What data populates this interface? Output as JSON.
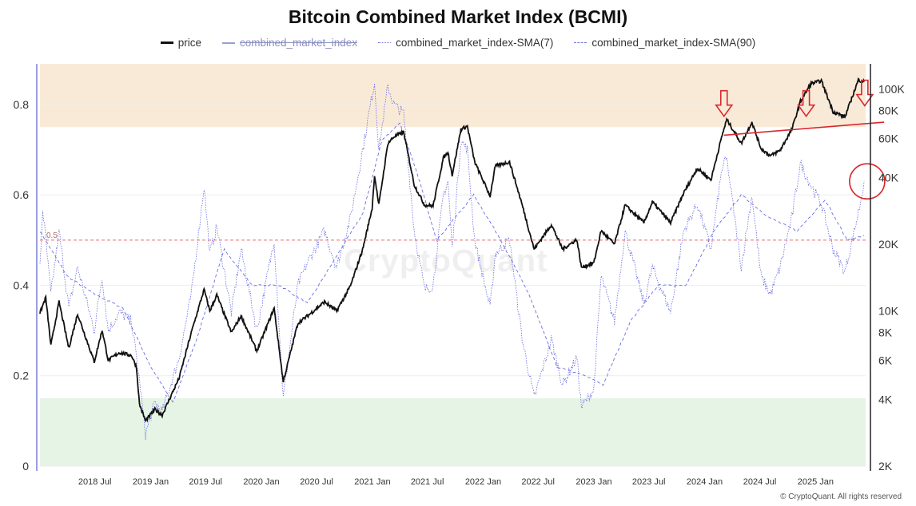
{
  "chart_data": {
    "type": "line",
    "title": "Bitcoin Combined Market Index (BCMI)",
    "legend": {
      "placement": "top-center",
      "entries": [
        {
          "key": "price",
          "label": "price",
          "style": "solid-thick",
          "color": "#111111",
          "active": true
        },
        {
          "key": "cmi",
          "label": "combined_market_index",
          "style": "solid",
          "color": "#8a8fc9",
          "active": false
        },
        {
          "key": "sma7",
          "label": "combined_market_index-SMA(7)",
          "style": "dotted",
          "color": "#6a6de0",
          "active": true
        },
        {
          "key": "sma90",
          "label": "combined_market_index-SMA(90)",
          "style": "dashed",
          "color": "#6a6de0",
          "active": true
        }
      ]
    },
    "x_axis": {
      "range": [
        "2018-01-01",
        "2025-06-15"
      ],
      "ticks": [
        {
          "date": "2018-07-01",
          "label": "2018 Jul"
        },
        {
          "date": "2019-01-01",
          "label": "2019 Jan"
        },
        {
          "date": "2019-07-01",
          "label": "2019 Jul"
        },
        {
          "date": "2020-01-01",
          "label": "2020 Jan"
        },
        {
          "date": "2020-07-01",
          "label": "2020 Jul"
        },
        {
          "date": "2021-01-01",
          "label": "2021 Jan"
        },
        {
          "date": "2021-07-01",
          "label": "2021 Jul"
        },
        {
          "date": "2022-01-01",
          "label": "2022 Jan"
        },
        {
          "date": "2022-07-01",
          "label": "2022 Jul"
        },
        {
          "date": "2023-01-01",
          "label": "2023 Jan"
        },
        {
          "date": "2023-07-01",
          "label": "2023 Jul"
        },
        {
          "date": "2024-01-01",
          "label": "2024 Jan"
        },
        {
          "date": "2024-07-01",
          "label": "2024 Jul"
        },
        {
          "date": "2025-01-01",
          "label": "2025 Jan"
        }
      ]
    },
    "y_left": {
      "range": [
        0,
        0.89
      ],
      "ticks": [
        {
          "v": 0,
          "label": "0"
        },
        {
          "v": 0.2,
          "label": "0.2"
        },
        {
          "v": 0.4,
          "label": "0.4"
        },
        {
          "v": 0.6,
          "label": "0.6"
        },
        {
          "v": 0.8,
          "label": "0.8"
        }
      ]
    },
    "y_right": {
      "scale": "log",
      "range": [
        2000,
        130000
      ],
      "ticks": [
        {
          "v": 2000,
          "label": "2K"
        },
        {
          "v": 4000,
          "label": "4K"
        },
        {
          "v": 6000,
          "label": "6K"
        },
        {
          "v": 8000,
          "label": "8K"
        },
        {
          "v": 10000,
          "label": "10K"
        },
        {
          "v": 20000,
          "label": "20K"
        },
        {
          "v": 40000,
          "label": "40K"
        },
        {
          "v": 60000,
          "label": "60K"
        },
        {
          "v": 80000,
          "label": "80K"
        },
        {
          "v": 100000,
          "label": "100K"
        }
      ]
    },
    "bands": [
      {
        "from": 0.75,
        "to": 0.89,
        "color": "#f9ead7"
      },
      {
        "from": 0,
        "to": 0.15,
        "color": "#e6f4e6"
      }
    ],
    "reference_line": {
      "value": 0.5,
      "label": "0.5",
      "color": "#e86b6b"
    },
    "series": [
      {
        "name": "price",
        "axis": "right",
        "points": [
          [
            "2018-01-01",
            9800
          ],
          [
            "2018-01-20",
            11500
          ],
          [
            "2018-02-06",
            7000
          ],
          [
            "2018-03-05",
            11000
          ],
          [
            "2018-04-06",
            6800
          ],
          [
            "2018-05-05",
            9700
          ],
          [
            "2018-06-29",
            5900
          ],
          [
            "2018-07-25",
            8200
          ],
          [
            "2018-08-14",
            6000
          ],
          [
            "2018-09-20",
            6500
          ],
          [
            "2018-10-30",
            6300
          ],
          [
            "2018-11-15",
            5600
          ],
          [
            "2018-11-25",
            3800
          ],
          [
            "2018-12-15",
            3200
          ],
          [
            "2019-01-15",
            3600
          ],
          [
            "2019-02-08",
            3400
          ],
          [
            "2019-04-05",
            5000
          ],
          [
            "2019-05-15",
            8000
          ],
          [
            "2019-06-26",
            12500
          ],
          [
            "2019-07-15",
            10000
          ],
          [
            "2019-08-07",
            11800
          ],
          [
            "2019-09-24",
            8000
          ],
          [
            "2019-10-26",
            9500
          ],
          [
            "2019-12-17",
            6600
          ],
          [
            "2020-02-12",
            10300
          ],
          [
            "2020-03-13",
            4800
          ],
          [
            "2020-04-30",
            8800
          ],
          [
            "2020-06-01",
            9500
          ],
          [
            "2020-07-27",
            11000
          ],
          [
            "2020-09-05",
            10000
          ],
          [
            "2020-10-21",
            13000
          ],
          [
            "2020-11-30",
            19000
          ],
          [
            "2020-12-31",
            29000
          ],
          [
            "2021-01-08",
            41000
          ],
          [
            "2021-01-22",
            30000
          ],
          [
            "2021-02-21",
            57000
          ],
          [
            "2021-03-13",
            61000
          ],
          [
            "2021-04-14",
            64000
          ],
          [
            "2021-05-19",
            37000
          ],
          [
            "2021-06-22",
            30000
          ],
          [
            "2021-07-20",
            29800
          ],
          [
            "2021-08-23",
            49000
          ],
          [
            "2021-09-07",
            52000
          ],
          [
            "2021-09-21",
            41000
          ],
          [
            "2021-10-20",
            66000
          ],
          [
            "2021-11-10",
            68000
          ],
          [
            "2021-12-04",
            47000
          ],
          [
            "2022-01-24",
            33000
          ],
          [
            "2022-02-10",
            45000
          ],
          [
            "2022-03-29",
            47000
          ],
          [
            "2022-05-10",
            30000
          ],
          [
            "2022-06-18",
            19000
          ],
          [
            "2022-08-14",
            24500
          ],
          [
            "2022-09-20",
            19000
          ],
          [
            "2022-11-06",
            21000
          ],
          [
            "2022-11-21",
            15700
          ],
          [
            "2023-01-01",
            16500
          ],
          [
            "2023-01-25",
            23000
          ],
          [
            "2023-03-10",
            20000
          ],
          [
            "2023-04-14",
            30000
          ],
          [
            "2023-06-15",
            25000
          ],
          [
            "2023-07-13",
            31000
          ],
          [
            "2023-09-11",
            25000
          ],
          [
            "2023-10-24",
            34000
          ],
          [
            "2023-12-08",
            44000
          ],
          [
            "2024-01-22",
            39000
          ],
          [
            "2024-02-28",
            62000
          ],
          [
            "2024-03-14",
            73000
          ],
          [
            "2024-05-01",
            57000
          ],
          [
            "2024-06-05",
            71000
          ],
          [
            "2024-07-05",
            54000
          ],
          [
            "2024-08-05",
            50000
          ],
          [
            "2024-09-06",
            53000
          ],
          [
            "2024-10-15",
            66000
          ],
          [
            "2024-11-12",
            88000
          ],
          [
            "2024-12-17",
            106000
          ],
          [
            "2025-01-20",
            109000
          ],
          [
            "2025-02-28",
            79000
          ],
          [
            "2025-04-08",
            75000
          ],
          [
            "2025-05-22",
            110000
          ],
          [
            "2025-06-10",
            108000
          ]
        ]
      },
      {
        "name": "combined_market_index-SMA(7)",
        "axis": "left",
        "points": [
          [
            "2018-01-01",
            0.44
          ],
          [
            "2018-01-10",
            0.57
          ],
          [
            "2018-02-06",
            0.38
          ],
          [
            "2018-03-05",
            0.52
          ],
          [
            "2018-04-06",
            0.35
          ],
          [
            "2018-05-05",
            0.44
          ],
          [
            "2018-06-29",
            0.3
          ],
          [
            "2018-07-25",
            0.42
          ],
          [
            "2018-08-14",
            0.3
          ],
          [
            "2018-09-20",
            0.34
          ],
          [
            "2018-10-30",
            0.32
          ],
          [
            "2018-11-25",
            0.19
          ],
          [
            "2018-12-15",
            0.07
          ],
          [
            "2019-01-15",
            0.14
          ],
          [
            "2019-02-08",
            0.12
          ],
          [
            "2019-04-05",
            0.24
          ],
          [
            "2019-05-15",
            0.38
          ],
          [
            "2019-06-26",
            0.62
          ],
          [
            "2019-07-15",
            0.47
          ],
          [
            "2019-08-07",
            0.53
          ],
          [
            "2019-09-24",
            0.34
          ],
          [
            "2019-10-26",
            0.48
          ],
          [
            "2019-12-17",
            0.3
          ],
          [
            "2020-02-12",
            0.5
          ],
          [
            "2020-03-13",
            0.15
          ],
          [
            "2020-04-30",
            0.4
          ],
          [
            "2020-06-01",
            0.45
          ],
          [
            "2020-07-27",
            0.52
          ],
          [
            "2020-09-05",
            0.44
          ],
          [
            "2020-10-21",
            0.55
          ],
          [
            "2020-11-30",
            0.7
          ],
          [
            "2020-12-31",
            0.82
          ],
          [
            "2021-01-08",
            0.85
          ],
          [
            "2021-01-22",
            0.7
          ],
          [
            "2021-02-21",
            0.84
          ],
          [
            "2021-03-13",
            0.8
          ],
          [
            "2021-04-14",
            0.78
          ],
          [
            "2021-05-19",
            0.52
          ],
          [
            "2021-06-22",
            0.39
          ],
          [
            "2021-07-20",
            0.4
          ],
          [
            "2021-08-23",
            0.6
          ],
          [
            "2021-09-07",
            0.63
          ],
          [
            "2021-09-21",
            0.48
          ],
          [
            "2021-10-20",
            0.72
          ],
          [
            "2021-11-10",
            0.7
          ],
          [
            "2021-12-04",
            0.5
          ],
          [
            "2022-01-24",
            0.35
          ],
          [
            "2022-02-10",
            0.47
          ],
          [
            "2022-03-29",
            0.5
          ],
          [
            "2022-05-10",
            0.28
          ],
          [
            "2022-06-18",
            0.15
          ],
          [
            "2022-08-14",
            0.28
          ],
          [
            "2022-09-20",
            0.18
          ],
          [
            "2022-11-06",
            0.24
          ],
          [
            "2022-11-21",
            0.13
          ],
          [
            "2023-01-01",
            0.17
          ],
          [
            "2023-01-25",
            0.42
          ],
          [
            "2023-03-10",
            0.32
          ],
          [
            "2023-04-14",
            0.52
          ],
          [
            "2023-06-15",
            0.36
          ],
          [
            "2023-07-13",
            0.44
          ],
          [
            "2023-09-11",
            0.34
          ],
          [
            "2023-10-24",
            0.52
          ],
          [
            "2023-12-08",
            0.58
          ],
          [
            "2024-01-22",
            0.48
          ],
          [
            "2024-02-28",
            0.66
          ],
          [
            "2024-03-14",
            0.68
          ],
          [
            "2024-05-01",
            0.44
          ],
          [
            "2024-06-05",
            0.6
          ],
          [
            "2024-07-05",
            0.42
          ],
          [
            "2024-08-05",
            0.38
          ],
          [
            "2024-09-06",
            0.44
          ],
          [
            "2024-10-15",
            0.55
          ],
          [
            "2024-11-12",
            0.67
          ],
          [
            "2024-12-17",
            0.62
          ],
          [
            "2025-01-20",
            0.58
          ],
          [
            "2025-02-28",
            0.48
          ],
          [
            "2025-04-08",
            0.43
          ],
          [
            "2025-05-22",
            0.56
          ],
          [
            "2025-06-10",
            0.63
          ]
        ]
      },
      {
        "name": "combined_market_index-SMA(90)",
        "axis": "left",
        "points": [
          [
            "2018-01-01",
            0.52
          ],
          [
            "2018-04-01",
            0.42
          ],
          [
            "2018-07-01",
            0.38
          ],
          [
            "2018-10-01",
            0.35
          ],
          [
            "2019-01-01",
            0.22
          ],
          [
            "2019-03-15",
            0.14
          ],
          [
            "2019-06-01",
            0.28
          ],
          [
            "2019-09-01",
            0.48
          ],
          [
            "2019-12-01",
            0.4
          ],
          [
            "2020-03-01",
            0.4
          ],
          [
            "2020-06-01",
            0.36
          ],
          [
            "2020-09-01",
            0.46
          ],
          [
            "2020-12-01",
            0.56
          ],
          [
            "2021-02-01",
            0.72
          ],
          [
            "2021-04-01",
            0.76
          ],
          [
            "2021-06-01",
            0.64
          ],
          [
            "2021-08-01",
            0.5
          ],
          [
            "2021-10-01",
            0.55
          ],
          [
            "2021-12-01",
            0.6
          ],
          [
            "2022-03-01",
            0.5
          ],
          [
            "2022-06-01",
            0.38
          ],
          [
            "2022-09-01",
            0.22
          ],
          [
            "2022-12-01",
            0.2
          ],
          [
            "2023-02-01",
            0.18
          ],
          [
            "2023-05-01",
            0.32
          ],
          [
            "2023-08-01",
            0.4
          ],
          [
            "2023-11-01",
            0.4
          ],
          [
            "2024-02-01",
            0.52
          ],
          [
            "2024-05-01",
            0.6
          ],
          [
            "2024-08-01",
            0.55
          ],
          [
            "2024-11-01",
            0.52
          ],
          [
            "2025-02-01",
            0.59
          ],
          [
            "2025-04-15",
            0.5
          ],
          [
            "2025-06-10",
            0.51
          ]
        ]
      }
    ],
    "annotations": [
      {
        "type": "down-arrow",
        "date": "2024-03-05",
        "price": 78000
      },
      {
        "type": "down-arrow",
        "date": "2024-12-01",
        "price": 78000
      },
      {
        "type": "down-arrow",
        "date": "2025-06-12",
        "price": 87000
      },
      {
        "type": "trend-line",
        "from": [
          "2024-03-05",
          62000
        ],
        "to": [
          "2025-08-15",
          71000
        ]
      },
      {
        "type": "circle",
        "date": "2025-06-20",
        "value": 0.63
      }
    ]
  },
  "watermark": "CryptoQuant",
  "copyright": "© CryptoQuant. All rights reserved"
}
